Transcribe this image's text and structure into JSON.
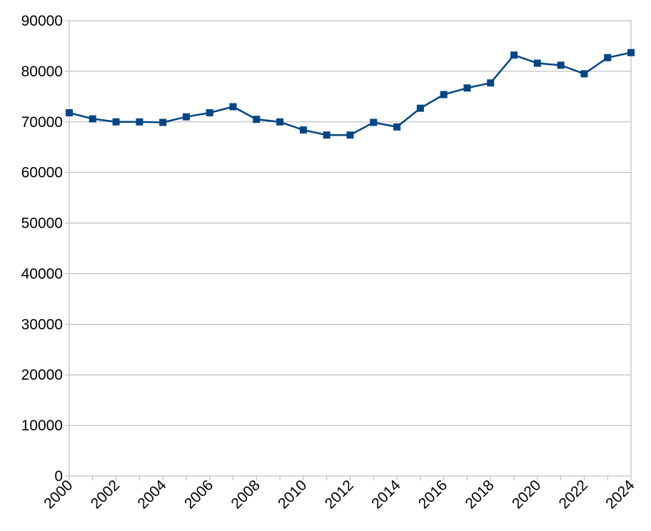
{
  "chart_data": {
    "type": "line",
    "title": "",
    "xlabel": "",
    "ylabel": "",
    "x": [
      2000,
      2001,
      2002,
      2003,
      2004,
      2005,
      2006,
      2007,
      2008,
      2009,
      2010,
      2011,
      2012,
      2013,
      2014,
      2015,
      2016,
      2017,
      2018,
      2019,
      2020,
      2021,
      2022,
      2023,
      2024
    ],
    "x_tick_labels": [
      "2000",
      "2002",
      "2004",
      "2006",
      "2008",
      "2010",
      "2012",
      "2014",
      "2016",
      "2018",
      "2020",
      "2022",
      "2024"
    ],
    "y_tick_labels": [
      "0",
      "10000",
      "20000",
      "30000",
      "40000",
      "50000",
      "60000",
      "70000",
      "80000",
      "90000"
    ],
    "ylim": [
      0,
      90000
    ],
    "xlim": [
      2000,
      2024
    ],
    "grid": true,
    "series": [
      {
        "values": [
          71800,
          70600,
          70000,
          70000,
          69900,
          71000,
          71800,
          73000,
          70500,
          70000,
          68400,
          67400,
          67400,
          69900,
          69000,
          72700,
          75400,
          76700,
          77700,
          83200,
          81600,
          81200,
          79500,
          82700,
          83700
        ],
        "color": "#004586",
        "marker": "square"
      }
    ]
  }
}
